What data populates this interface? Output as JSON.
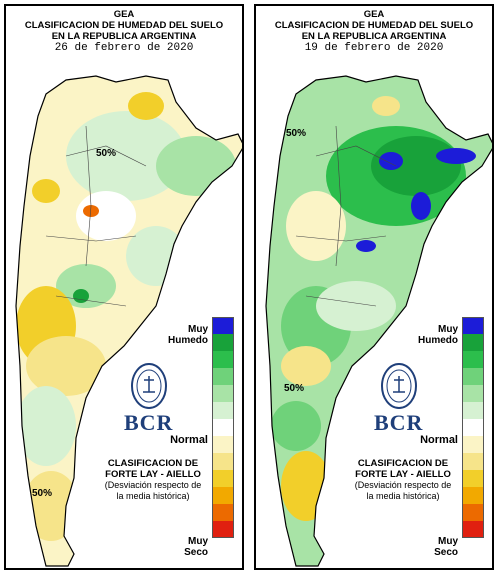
{
  "panels": [
    {
      "org": "GEA",
      "title_line1": "CLASIFICACION DE HUMEDAD DEL SUELO",
      "title_line2": "EN LA REPUBLICA ARGENTINA",
      "date": "26 de febrero de 2020",
      "contour_label": "50%",
      "legend": {
        "muy": "Muy",
        "humedo": "Humedo",
        "normal": "Normal",
        "muy2": "Muy",
        "seco": "Seco",
        "class_line1": "CLASIFICACION DE",
        "class_line2": "FORTE LAY - AIELLO",
        "class_note1": "(Desviación respecto de",
        "class_note2": "la media histórica)",
        "bcr": "BCR"
      }
    },
    {
      "org": "GEA",
      "title_line1": "CLASIFICACION DE HUMEDAD DEL SUELO",
      "title_line2": "EN LA REPUBLICA ARGENTINA",
      "date": "19 de febrero de 2020",
      "contour_label": "50%",
      "legend": {
        "muy": "Muy",
        "humedo": "Humedo",
        "normal": "Normal",
        "muy2": "Muy",
        "seco": "Seco",
        "class_line1": "CLASIFICACION DE",
        "class_line2": "FORTE LAY - AIELLO",
        "class_note1": "(Desviación respecto de",
        "class_note2": "la media histórica)",
        "bcr": "BCR"
      }
    }
  ],
  "legend_colors": [
    "#1c1cd8",
    "#18a23a",
    "#2cbe4c",
    "#6fd27a",
    "#a8e3a6",
    "#d6f1d2",
    "#ffffff",
    "#fbf4c6",
    "#f6e48a",
    "#f2cf2a",
    "#f2a900",
    "#ec6a00",
    "#e02010"
  ],
  "colors": {
    "very_wet": "#1c1cd8",
    "wet": "#18a23a",
    "normal": "#ffffff",
    "dry": "#f2cf2a",
    "very_dry": "#e02010"
  }
}
